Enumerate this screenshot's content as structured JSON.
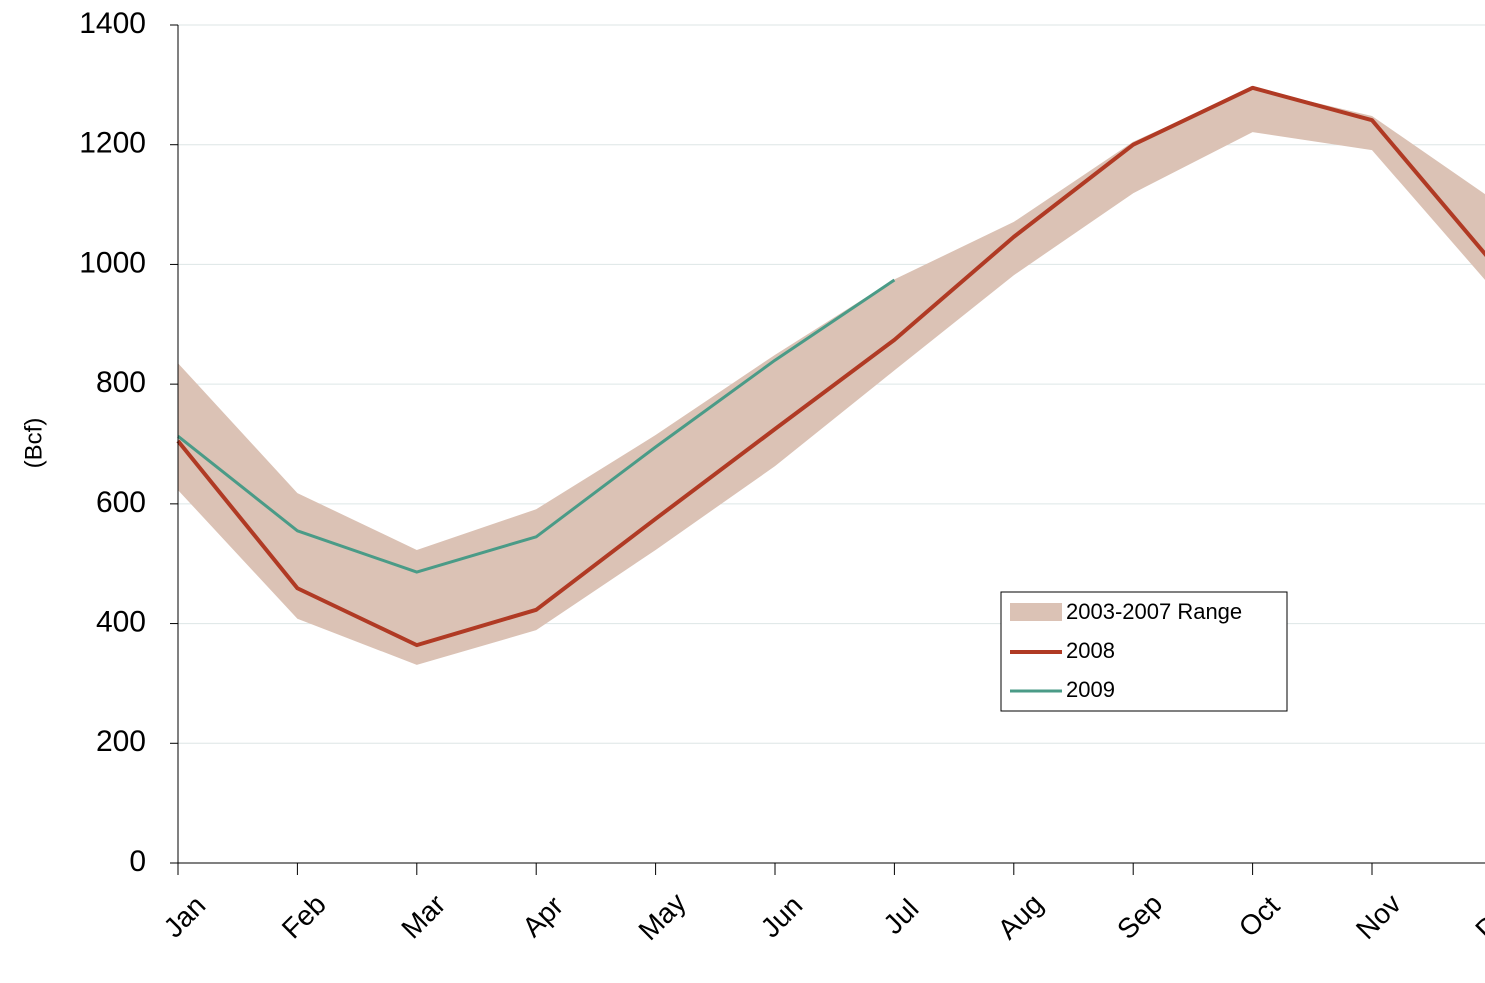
{
  "chart_data": {
    "type": "line",
    "y_label": "(Bcf)",
    "categories": [
      "Jan",
      "Feb",
      "Mar",
      "Apr",
      "May",
      "Jun",
      "Jul",
      "Aug",
      "Sep",
      "Oct",
      "Nov",
      "Dec"
    ],
    "range": {
      "name": "2003-2007 Range",
      "color": "#dbc2b5",
      "low": [
        623,
        408,
        331,
        389,
        523,
        663,
        823,
        982,
        1119,
        1221,
        1191,
        962
      ],
      "high": [
        835,
        618,
        523,
        591,
        715,
        849,
        975,
        1071,
        1205,
        1295,
        1248,
        1110
      ]
    },
    "series": [
      {
        "name": "2008",
        "color": "#b03a24",
        "values": [
          705,
          459,
          364,
          423,
          575,
          725,
          874,
          1046,
          1200,
          1295,
          1241,
          1005
        ]
      },
      {
        "name": "2009",
        "color": "#4a9b87",
        "values": [
          713,
          555,
          486,
          545,
          695,
          840,
          974,
          null,
          null,
          null,
          null,
          null
        ]
      }
    ],
    "ylim": [
      0,
      1400
    ],
    "yticks": [
      0,
      200,
      400,
      600,
      800,
      1000,
      1200,
      1400
    ],
    "grid": true
  }
}
